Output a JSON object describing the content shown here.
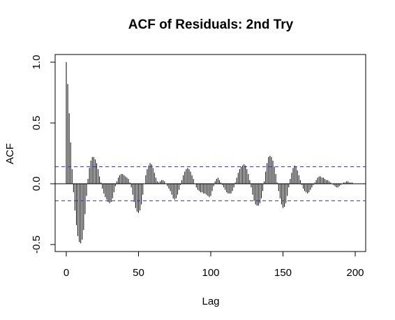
{
  "chart_data": {
    "type": "bar",
    "title": "ACF of Residuals: 2nd Try",
    "xlabel": "Lag",
    "ylabel": "ACF",
    "xlim": [
      0,
      200
    ],
    "ylim": [
      -0.5,
      1.0
    ],
    "x_ticks": [
      {
        "value": 0,
        "label": "0"
      },
      {
        "value": 50,
        "label": "50"
      },
      {
        "value": 100,
        "label": "100"
      },
      {
        "value": 150,
        "label": "150"
      },
      {
        "value": 200,
        "label": "200"
      }
    ],
    "y_ticks": [
      {
        "value": -0.5,
        "label": "-0.5"
      },
      {
        "value": 0.0,
        "label": "0.0"
      },
      {
        "value": 0.5,
        "label": "0.5"
      },
      {
        "value": 1.0,
        "label": "1.0"
      }
    ],
    "confidence_bounds": [
      0.14,
      -0.14
    ],
    "bound_color": "#2b2bff",
    "grid": false,
    "series": [
      {
        "lags": [
          0,
          1,
          2,
          3,
          4,
          5,
          6,
          7,
          8,
          9,
          10,
          11,
          12,
          13,
          14,
          15,
          16,
          17,
          18,
          19,
          20,
          21,
          22,
          23,
          24,
          25,
          26,
          27,
          28,
          29,
          30,
          31,
          32,
          33,
          34,
          35,
          36,
          37,
          38,
          39,
          40,
          41,
          42,
          43,
          44,
          45,
          46,
          47,
          48,
          49,
          50,
          51,
          52,
          53,
          54,
          55,
          56,
          57,
          58,
          59,
          60,
          61,
          62,
          63,
          64,
          65,
          66,
          67,
          68,
          69,
          70,
          71,
          72,
          73,
          74,
          75,
          76,
          77,
          78,
          79,
          80,
          81,
          82,
          83,
          84,
          85,
          86,
          87,
          88,
          89,
          90,
          91,
          92,
          93,
          94,
          95,
          96,
          97,
          98,
          99,
          100,
          101,
          102,
          103,
          104,
          105,
          106,
          107,
          108,
          109,
          110,
          111,
          112,
          113,
          114,
          115,
          116,
          117,
          118,
          119,
          120,
          121,
          122,
          123,
          124,
          125,
          126,
          127,
          128,
          129,
          130,
          131,
          132,
          133,
          134,
          135,
          136,
          137,
          138,
          139,
          140,
          141,
          142,
          143,
          144,
          145,
          146,
          147,
          148,
          149,
          150,
          151,
          152,
          153,
          154,
          155,
          156,
          157,
          158,
          159,
          160,
          161,
          162,
          163,
          164,
          165,
          166,
          167,
          168,
          169,
          170,
          171,
          172,
          173,
          174,
          175,
          176,
          177,
          178,
          179,
          180,
          181,
          182,
          183,
          184,
          185,
          186,
          187,
          188,
          189,
          190,
          191,
          192,
          193,
          194,
          195,
          196,
          197,
          198
        ],
        "values": [
          1.0,
          0.82,
          0.58,
          0.34,
          0.12,
          -0.07,
          -0.22,
          -0.34,
          -0.43,
          -0.48,
          -0.49,
          -0.46,
          -0.38,
          -0.25,
          -0.1,
          0.04,
          0.13,
          0.19,
          0.22,
          0.22,
          0.2,
          0.17,
          0.12,
          0.06,
          0.01,
          -0.04,
          -0.08,
          -0.11,
          -0.13,
          -0.15,
          -0.16,
          -0.15,
          -0.12,
          -0.07,
          -0.02,
          0.02,
          0.05,
          0.07,
          0.08,
          0.08,
          0.07,
          0.06,
          0.05,
          0.04,
          0.01,
          -0.03,
          -0.09,
          -0.15,
          -0.2,
          -0.23,
          -0.24,
          -0.22,
          -0.17,
          -0.09,
          0.0,
          0.07,
          0.12,
          0.15,
          0.17,
          0.16,
          0.13,
          0.09,
          0.05,
          0.02,
          0.01,
          0.02,
          0.03,
          0.03,
          0.02,
          0.0,
          -0.02,
          -0.04,
          -0.06,
          -0.09,
          -0.12,
          -0.13,
          -0.12,
          -0.09,
          -0.05,
          -0.01,
          0.03,
          0.07,
          0.1,
          0.12,
          0.13,
          0.12,
          0.1,
          0.07,
          0.04,
          0.0,
          -0.03,
          -0.05,
          -0.06,
          -0.07,
          -0.07,
          -0.08,
          -0.08,
          -0.09,
          -0.1,
          -0.11,
          -0.1,
          -0.06,
          -0.02,
          0.02,
          0.04,
          0.05,
          0.03,
          0.01,
          -0.01,
          -0.03,
          -0.05,
          -0.07,
          -0.08,
          -0.08,
          -0.08,
          -0.06,
          -0.03,
          0.01,
          0.05,
          0.09,
          0.12,
          0.14,
          0.15,
          0.16,
          0.15,
          0.12,
          0.08,
          0.03,
          -0.03,
          -0.09,
          -0.14,
          -0.17,
          -0.18,
          -0.18,
          -0.16,
          -0.12,
          -0.06,
          0.02,
          0.1,
          0.17,
          0.22,
          0.23,
          0.22,
          0.19,
          0.14,
          0.08,
          0.01,
          -0.06,
          -0.12,
          -0.17,
          -0.2,
          -0.19,
          -0.16,
          -0.1,
          -0.03,
          0.04,
          0.09,
          0.13,
          0.15,
          0.14,
          0.11,
          0.07,
          0.03,
          -0.01,
          -0.04,
          -0.06,
          -0.07,
          -0.08,
          -0.07,
          -0.05,
          -0.03,
          -0.01,
          0.01,
          0.03,
          0.05,
          0.06,
          0.06,
          0.05,
          0.05,
          0.04,
          0.03,
          0.03,
          0.02,
          0.01,
          0.0,
          -0.01,
          -0.02,
          -0.03,
          -0.03,
          -0.02,
          -0.01,
          0.0,
          0.01,
          0.01,
          0.02,
          0.02,
          0.01,
          0.01,
          0.01
        ]
      }
    ]
  }
}
